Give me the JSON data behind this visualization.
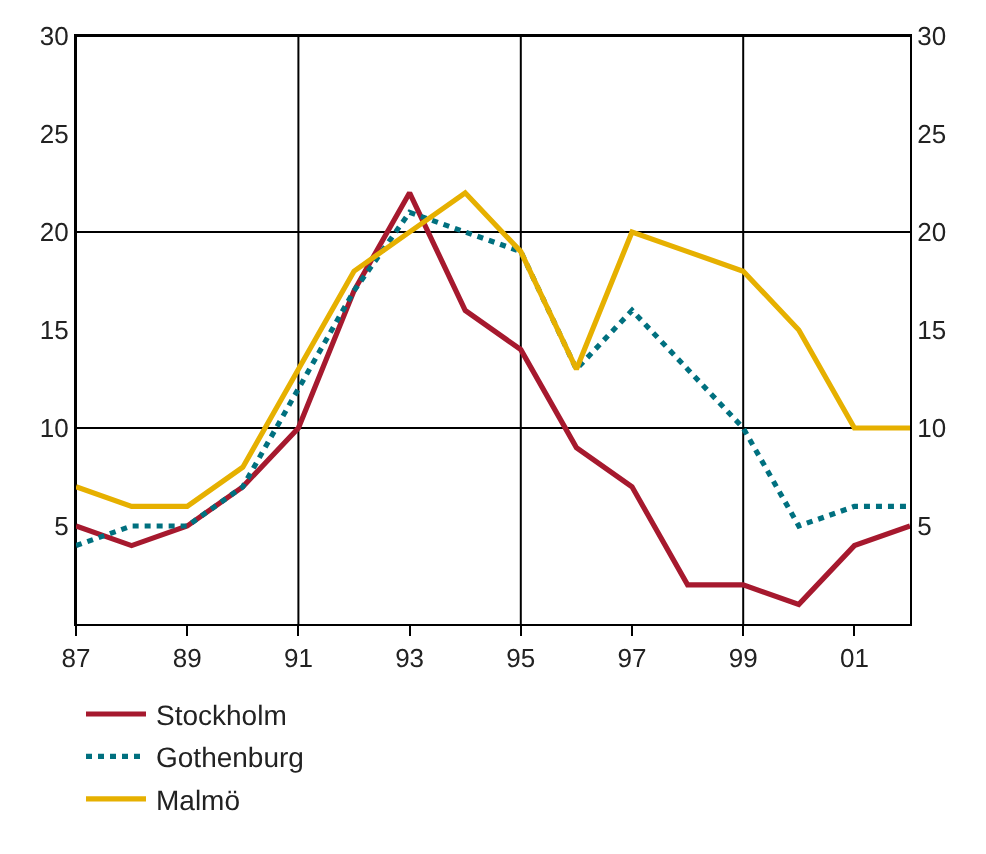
{
  "chart_data": {
    "type": "line",
    "x": [
      1987,
      1988,
      1989,
      1990,
      1991,
      1992,
      1993,
      1994,
      1995,
      1996,
      1997,
      1998,
      1999,
      2000,
      2001,
      2002
    ],
    "series": [
      {
        "name": "Stockholm",
        "color": "#a6192e",
        "line_style": "solid",
        "values": [
          5,
          4,
          5,
          7,
          10,
          17,
          22,
          16,
          14,
          9,
          7,
          2,
          2,
          1,
          4,
          5
        ]
      },
      {
        "name": "Gothenburg",
        "color": "#00707f",
        "line_style": "dotted",
        "values": [
          4,
          5,
          5,
          7,
          12,
          17,
          21,
          20,
          19,
          13,
          16,
          13,
          10,
          5,
          6,
          6
        ]
      },
      {
        "name": "Malmö",
        "color": "#e6b000",
        "line_style": "solid",
        "values": [
          7,
          6,
          6,
          8,
          13,
          18,
          20,
          22,
          19,
          13,
          20,
          19,
          18,
          15,
          10,
          10
        ]
      }
    ],
    "xlim": [
      1987,
      2002
    ],
    "xticks": [
      {
        "value": 1987,
        "label": "87"
      },
      {
        "value": 1989,
        "label": "89"
      },
      {
        "value": 1991,
        "label": "91"
      },
      {
        "value": 1993,
        "label": "93"
      },
      {
        "value": 1995,
        "label": "95"
      },
      {
        "value": 1997,
        "label": "97"
      },
      {
        "value": 1999,
        "label": "99"
      },
      {
        "value": 2001,
        "label": "01"
      }
    ],
    "ylim": [
      0,
      30
    ],
    "yticks": [
      5,
      10,
      15,
      20,
      25,
      30
    ],
    "y2lim": [
      0,
      30
    ],
    "y2ticks": [
      5,
      10,
      15,
      20,
      25,
      30
    ],
    "grid": true,
    "legend": "bottom left",
    "marker": "none"
  }
}
